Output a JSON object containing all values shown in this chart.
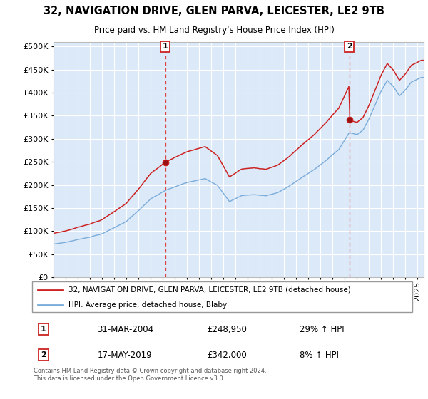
{
  "title": "32, NAVIGATION DRIVE, GLEN PARVA, LEICESTER, LE2 9TB",
  "subtitle": "Price paid vs. HM Land Registry's House Price Index (HPI)",
  "background_color": "#ffffff",
  "plot_background": "#dce9f8",
  "grid_color": "#ffffff",
  "sale1_date": "31-MAR-2004",
  "sale1_price": 248950,
  "sale1_hpi_pct": "29% ↑ HPI",
  "sale1_t": 2004.21,
  "sale2_date": "17-MAY-2019",
  "sale2_price": 342000,
  "sale2_hpi_pct": "8% ↑ HPI",
  "sale2_t": 2019.37,
  "legend1": "32, NAVIGATION DRIVE, GLEN PARVA, LEICESTER, LE2 9TB (detached house)",
  "legend2": "HPI: Average price, detached house, Blaby",
  "footnote": "Contains HM Land Registry data © Crown copyright and database right 2024.\nThis data is licensed under the Open Government Licence v3.0.",
  "red_color": "#cc2222",
  "blue_color": "#7aacda",
  "yticks": [
    0,
    50000,
    100000,
    150000,
    200000,
    250000,
    300000,
    350000,
    400000,
    450000,
    500000
  ],
  "ylim": [
    0,
    510000
  ],
  "xlim_start": 1995.0,
  "xlim_end": 2025.5
}
